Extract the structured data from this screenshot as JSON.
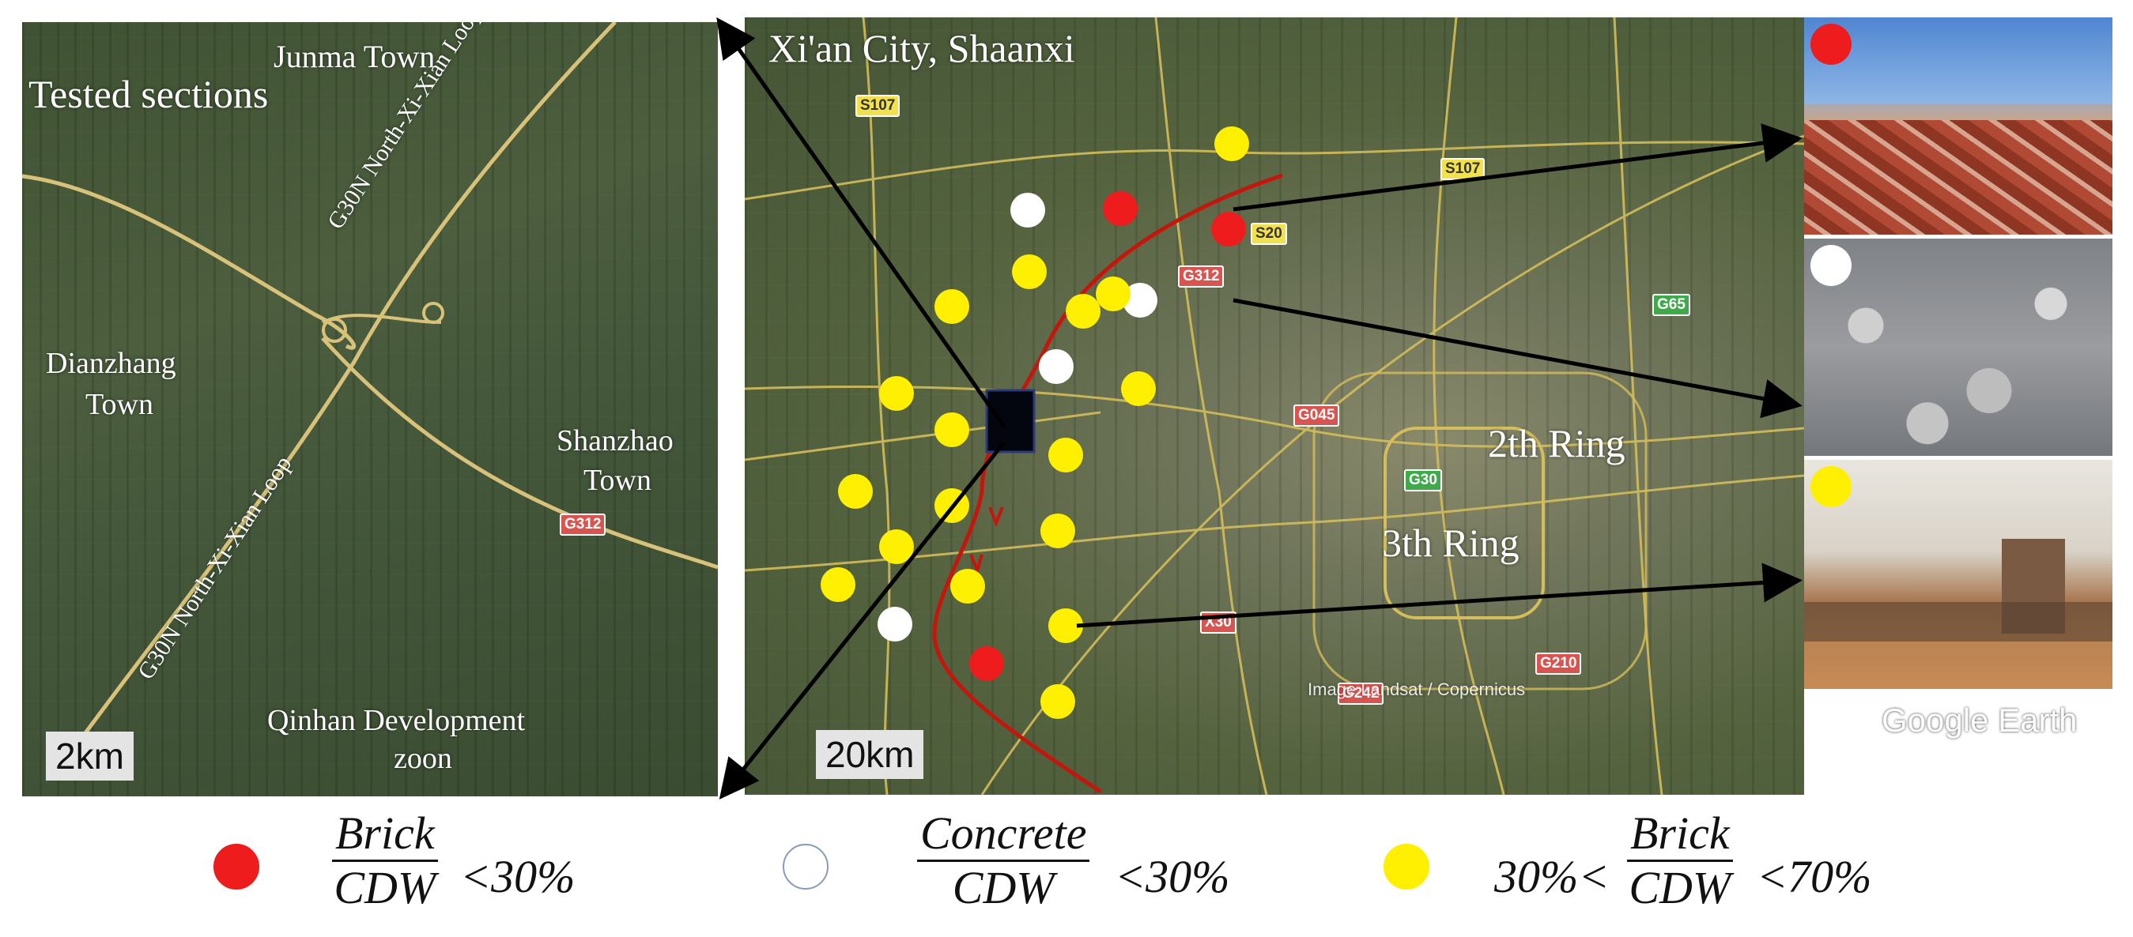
{
  "left_map": {
    "title": "Tested sections",
    "town_labels": {
      "junma": "Junma Town",
      "dianzhang_1": "Dianzhang",
      "dianzhang_2": "Town",
      "shanzhao_1": "Shanzhao",
      "shanzhao_2": "Town",
      "qinhan_1": "Qinhan Development",
      "qinhan_2": "zoon"
    },
    "road_labels": {
      "loop_upper": "G30N North-Xi-Xian Loop",
      "loop_lower": "G30N North-Xi-Xian Loop",
      "g312": "G312"
    },
    "scale": "2km"
  },
  "main_map": {
    "title": "Xi'an City, Shaanxi",
    "ring_labels": {
      "second": "2th Ring",
      "third": "3th Ring"
    },
    "road_shields": {
      "s107_a": "S107",
      "s107_b": "S107",
      "s20": "S20",
      "g312": "G312",
      "g65": "G65",
      "g045": "G045",
      "g30": "G30",
      "x2": "X30",
      "g210": "G210",
      "g242": "G242"
    },
    "credit": "Image Landsat / Copernicus",
    "scale": "20km",
    "marker_colors": {
      "red": "#ee1c1c",
      "white": "#ffffff",
      "yellow": "#ffef00"
    }
  },
  "photos": {
    "brand": "Google Earth"
  },
  "legend": {
    "items": [
      {
        "color": "#ee1c1c",
        "numerator": "Brick",
        "denominator": "CDW",
        "prefix": "",
        "suffix": "<30%"
      },
      {
        "color": "#ffffff",
        "numerator": "Concrete",
        "denominator": "CDW",
        "prefix": "",
        "suffix": "<30%"
      },
      {
        "color": "#ffef00",
        "numerator": "Brick",
        "denominator": "CDW",
        "prefix": "30%<",
        "suffix": "<70%"
      }
    ]
  }
}
